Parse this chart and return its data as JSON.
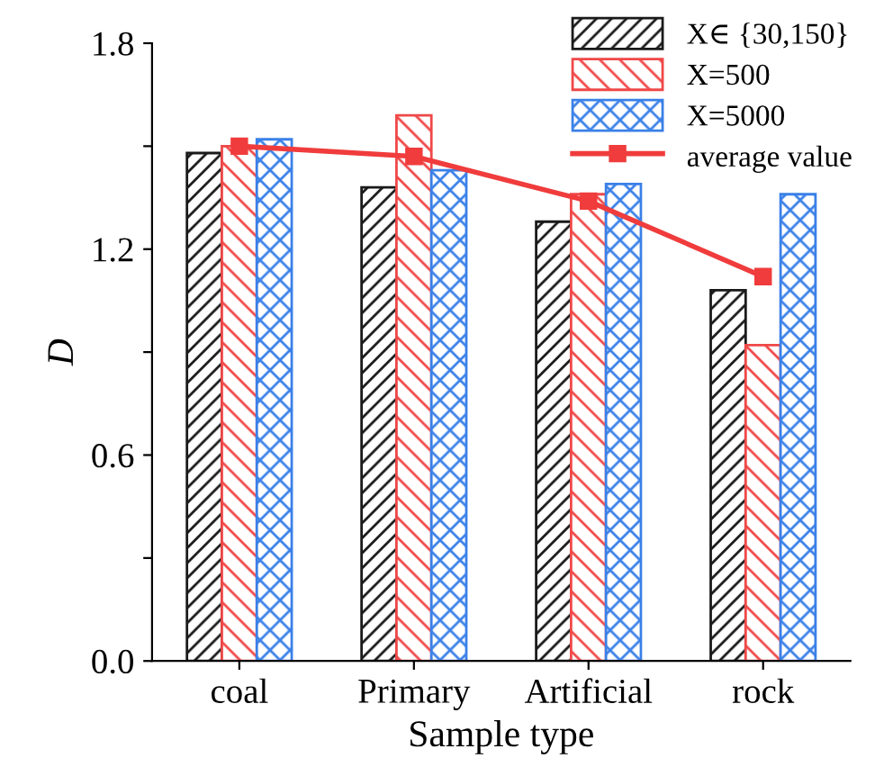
{
  "chart_data": {
    "type": "bar",
    "xlabel": "Sample type",
    "ylabel": "D",
    "categories": [
      "coal",
      "Primary",
      "Artificial",
      "rock"
    ],
    "series": [
      {
        "name": "X∈ {30,150}",
        "color": "#1a1a1a",
        "values": [
          1.48,
          1.38,
          1.28,
          1.08
        ]
      },
      {
        "name": "X=500",
        "color": "#f04848",
        "values": [
          1.5,
          1.59,
          1.36,
          0.92
        ]
      },
      {
        "name": "X=5000",
        "color": "#3a80e8",
        "values": [
          1.52,
          1.43,
          1.39,
          1.36
        ]
      },
      {
        "name": "average value",
        "type": "line",
        "color": "#f03c3c",
        "marker": "square",
        "values": [
          1.5,
          1.47,
          1.34,
          1.12
        ]
      }
    ],
    "ylim": [
      0,
      1.8
    ],
    "yticks": [
      {
        "value": 0,
        "label": "0.0"
      },
      {
        "value": 0.3,
        "label": null
      },
      {
        "value": 0.6,
        "label": "0.6"
      },
      {
        "value": 0.9,
        "label": null
      },
      {
        "value": 1.2,
        "label": "1.2"
      },
      {
        "value": 1.5,
        "label": null
      },
      {
        "value": 1.8,
        "label": "1.8"
      }
    ],
    "legend": "top right",
    "grid": false
  }
}
